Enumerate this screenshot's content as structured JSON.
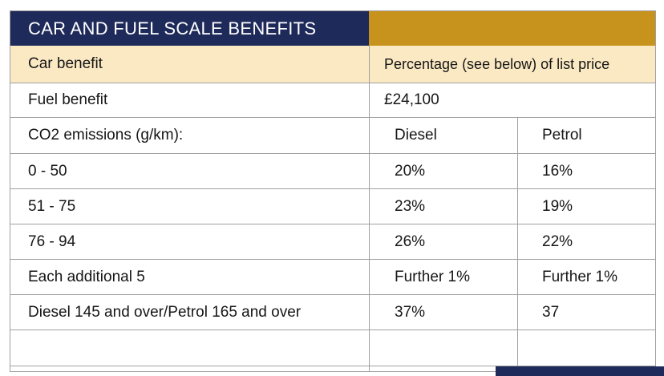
{
  "header": {
    "title": "CAR AND FUEL SCALE BENEFITS"
  },
  "colors": {
    "navy": "#1e2a5a",
    "gold": "#c8931c",
    "cream": "#fbe9c3",
    "grid": "#a0a0a0",
    "header_text": "#ffffff",
    "body_text": "#161616"
  },
  "table": {
    "rows": [
      {
        "label": "Car benefit",
        "value": "Percentage (see below) of list price"
      },
      {
        "label": "Fuel benefit",
        "value": "£24,100"
      },
      {
        "label": "CO2 emissions (g/km):",
        "diesel": "Diesel",
        "petrol": "Petrol"
      },
      {
        "label": "0 - 50",
        "diesel": "20%",
        "petrol": "16%"
      },
      {
        "label": "51 - 75",
        "diesel": "23%",
        "petrol": "19%"
      },
      {
        "label": "76 - 94",
        "diesel": "26%",
        "petrol": "22%"
      },
      {
        "label": "Each additional 5",
        "diesel": "Further 1%",
        "petrol": "Further 1%"
      },
      {
        "label": "Diesel 145 and over/Petrol 165 and over",
        "diesel": "37%",
        "petrol": "37"
      },
      {
        "label": "",
        "diesel": "",
        "petrol": ""
      }
    ]
  }
}
